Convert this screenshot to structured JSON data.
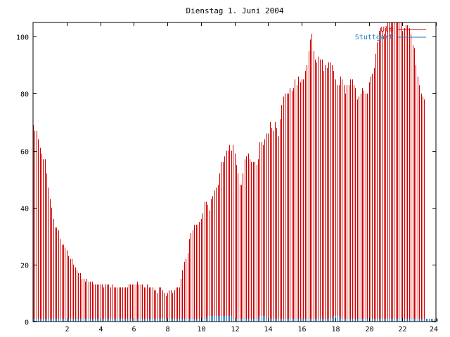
{
  "chart_data": {
    "type": "bar",
    "title": "Dienstag 1. Juni 2004",
    "xlabel": "",
    "ylabel": "",
    "xlim": [
      0,
      24
    ],
    "ylim": [
      0,
      105
    ],
    "xticks": [
      2,
      4,
      6,
      8,
      10,
      12,
      14,
      16,
      18,
      20,
      22,
      24
    ],
    "yticks": [
      0,
      20,
      40,
      60,
      80,
      100
    ],
    "grid": false,
    "legend_position": "top-right",
    "series": [
      {
        "name": "Ulm",
        "color": "#cc0000",
        "interval_hours": 0.1,
        "values": [
          69,
          67,
          67,
          64,
          61,
          59,
          57,
          57,
          52,
          47,
          43,
          40,
          36,
          33,
          33,
          32,
          29,
          27,
          27,
          26,
          25,
          23,
          22,
          22,
          20,
          19,
          18,
          17,
          17,
          15,
          15,
          14,
          15,
          14,
          14,
          14,
          13,
          13,
          13,
          13,
          13,
          13,
          12,
          13,
          13,
          13,
          12,
          13,
          12,
          12,
          12,
          12,
          12,
          12,
          12,
          12,
          12,
          13,
          13,
          13,
          13,
          13,
          14,
          13,
          13,
          13,
          12,
          12,
          13,
          12,
          12,
          12,
          11,
          11,
          10,
          12,
          12,
          11,
          10,
          9,
          10,
          11,
          11,
          10,
          11,
          12,
          12,
          12,
          15,
          18,
          21,
          22,
          24,
          29,
          31,
          32,
          34,
          34,
          34,
          35,
          36,
          38,
          42,
          42,
          41,
          39,
          43,
          44,
          46,
          47,
          48,
          52,
          56,
          56,
          58,
          60,
          60,
          62,
          60,
          62,
          59,
          55,
          52,
          48,
          48,
          52,
          57,
          58,
          59,
          57,
          56,
          56,
          56,
          55,
          57,
          63,
          63,
          62,
          64,
          66,
          66,
          70,
          68,
          67,
          70,
          68,
          65,
          71,
          76,
          79,
          80,
          80,
          80,
          82,
          81,
          82,
          85,
          83,
          86,
          84,
          85,
          85,
          88,
          90,
          95,
          99,
          101,
          95,
          92,
          91,
          93,
          92,
          92,
          88,
          90,
          89,
          91,
          91,
          90,
          88,
          85,
          83,
          83,
          86,
          85,
          83,
          80,
          83,
          83,
          85,
          85,
          83,
          82,
          78,
          79,
          80,
          82,
          81,
          80,
          80,
          84,
          86,
          87,
          89,
          94,
          98,
          102,
          103,
          102,
          101,
          103,
          105,
          105,
          105,
          105,
          105,
          105,
          105,
          105,
          105,
          102,
          103,
          104,
          104,
          103,
          101,
          97,
          96,
          90,
          86,
          83,
          80,
          79,
          78
        ]
      },
      {
        "name": "Stuttgart",
        "color": "#1e78be",
        "interval_hours": 0.1,
        "values": [
          1,
          1,
          1,
          1,
          1,
          1,
          1,
          1,
          1,
          1,
          1,
          1,
          1,
          1,
          1,
          1,
          1,
          1,
          1,
          1,
          1,
          1,
          1,
          1,
          1,
          1,
          1,
          1,
          1,
          1,
          1,
          1,
          1,
          1,
          1,
          1,
          1,
          1,
          1,
          1,
          1,
          1,
          1,
          1,
          1,
          1,
          1,
          1,
          1,
          1,
          1,
          1,
          1,
          1,
          1,
          1,
          1,
          1,
          1,
          1,
          1,
          1,
          1,
          1,
          1,
          1,
          1,
          1,
          1,
          1,
          1,
          1,
          1,
          1,
          1,
          1,
          1,
          1,
          1,
          1,
          1,
          1,
          1,
          1,
          1,
          1,
          1,
          1,
          1,
          1,
          1,
          1,
          1,
          1,
          1,
          1,
          1,
          1,
          1,
          1,
          1,
          1,
          1,
          1,
          2,
          2,
          2,
          2,
          2,
          2,
          2,
          2,
          2,
          2,
          2,
          2,
          2,
          2,
          2,
          1,
          1,
          1,
          1,
          1,
          1,
          1,
          1,
          1,
          1,
          1,
          1,
          1,
          1,
          1,
          1,
          2,
          2,
          2,
          2,
          1,
          1,
          1,
          1,
          1,
          1,
          1,
          1,
          1,
          1,
          1,
          1,
          1,
          1,
          1,
          1,
          1,
          1,
          1,
          1,
          1,
          1,
          1,
          1,
          1,
          1,
          1,
          1,
          1,
          1,
          1,
          1,
          1,
          1,
          1,
          1,
          1,
          1,
          1,
          1,
          2,
          2,
          2,
          2,
          1,
          1,
          1,
          1,
          1,
          1,
          1,
          1,
          1,
          1,
          1,
          1,
          1,
          1,
          1,
          1,
          1,
          1,
          1,
          1,
          1,
          1,
          1,
          1,
          1,
          1,
          1,
          1,
          1,
          1,
          1,
          1,
          1,
          1,
          1,
          1,
          1,
          1,
          1,
          1,
          1,
          1,
          1,
          1,
          1,
          1,
          1,
          1,
          1,
          1,
          1,
          1,
          1,
          1,
          1,
          1,
          1,
          1,
          1
        ]
      }
    ]
  }
}
